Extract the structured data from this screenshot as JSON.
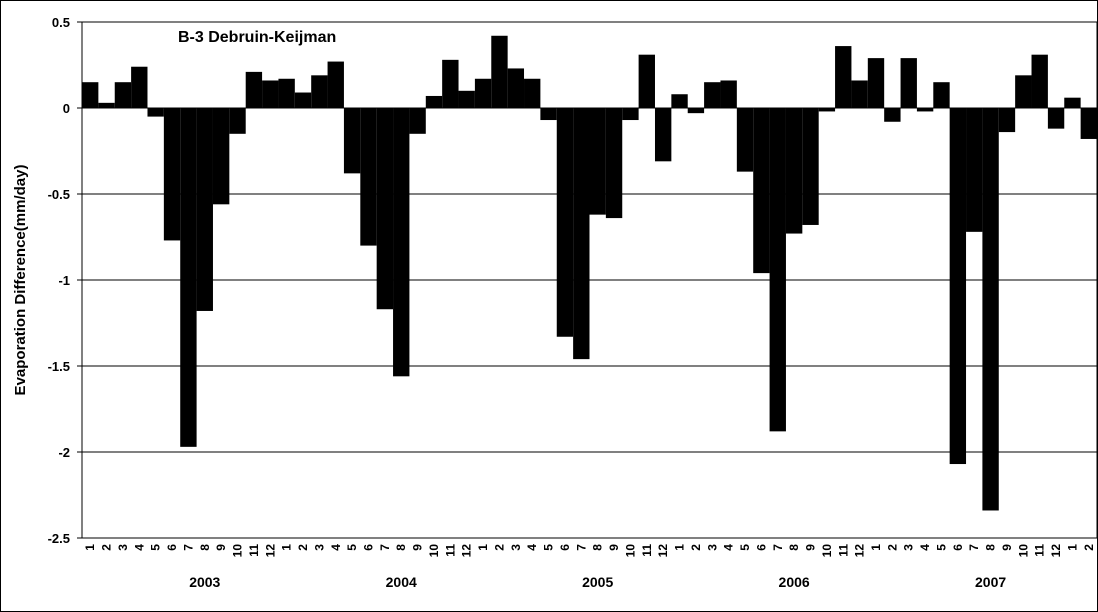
{
  "chart_data": {
    "type": "bar",
    "title": "B-3 Debruin-Keijman",
    "y_label": "Evaporation Difference(mm/day)",
    "categories": [
      "1",
      "2",
      "3",
      "4",
      "5",
      "6",
      "7",
      "8",
      "9",
      "10",
      "11",
      "12",
      "1",
      "2",
      "3",
      "4",
      "5",
      "6",
      "7",
      "8",
      "9",
      "10",
      "11",
      "12",
      "1",
      "2",
      "3",
      "4",
      "5",
      "6",
      "7",
      "8",
      "9",
      "10",
      "11",
      "12",
      "1",
      "2",
      "3",
      "4",
      "5",
      "6",
      "7",
      "8",
      "9",
      "10",
      "11",
      "12",
      "1",
      "2",
      "3",
      "4",
      "5",
      "6",
      "7",
      "8",
      "9",
      "10",
      "11",
      "12",
      "1",
      "2"
    ],
    "groups": [
      "2003",
      "2004",
      "2005",
      "2006",
      "2007"
    ],
    "values": [
      0.15,
      0.03,
      0.15,
      0.24,
      -0.05,
      -0.77,
      -1.97,
      -1.18,
      -0.56,
      -0.15,
      0.21,
      0.16,
      0.17,
      0.09,
      0.19,
      0.27,
      -0.38,
      -0.8,
      -1.17,
      -1.56,
      -0.15,
      0.07,
      0.28,
      0.1,
      0.17,
      0.42,
      0.23,
      0.17,
      -0.07,
      -1.33,
      -1.46,
      -0.62,
      -0.64,
      -0.07,
      0.31,
      -0.31,
      0.08,
      -0.03,
      0.15,
      0.16,
      -0.37,
      -0.96,
      -1.88,
      -0.73,
      -0.68,
      -0.02,
      0.36,
      0.16,
      0.29,
      -0.08,
      0.29,
      -0.02,
      0.15,
      -2.07,
      -0.72,
      -2.34,
      -0.14,
      0.19,
      0.31,
      -0.12,
      0.06,
      -0.18
    ],
    "color": "#000000",
    "ylim": [
      -2.5,
      0.5
    ],
    "yticks": [
      -2.5,
      -2,
      -1.5,
      -1,
      -0.5,
      0,
      0.5
    ],
    "grid": true
  }
}
